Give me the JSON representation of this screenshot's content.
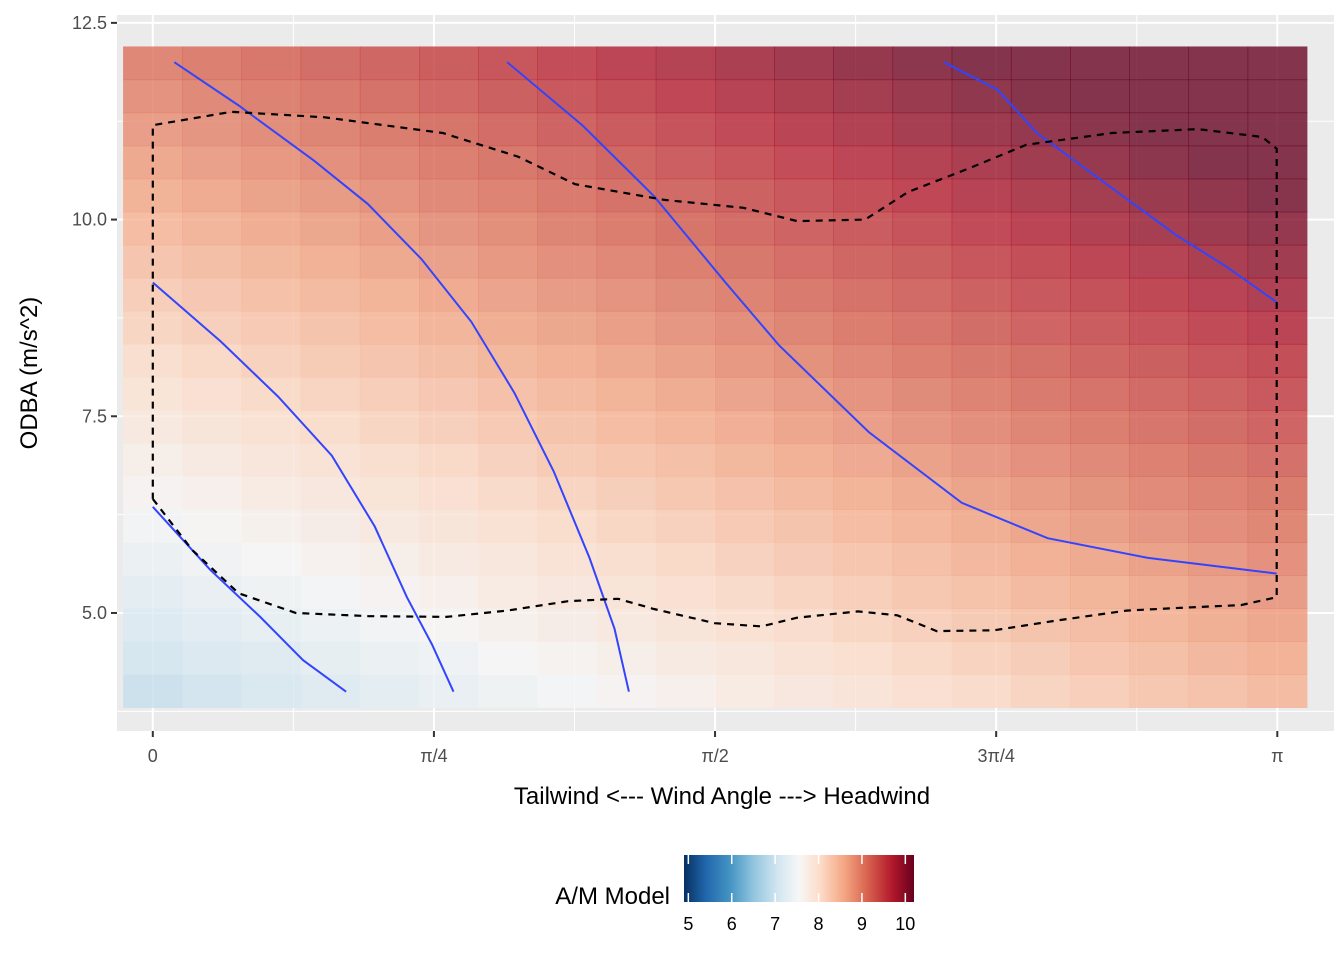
{
  "chart_data": {
    "type": "heatmap",
    "title": "",
    "xlabel": "Tailwind  <---  Wind Angle  --->  Headwind",
    "ylabel": "ODBA (m/s^2)",
    "xlim": [
      -0.1,
      3.3
    ],
    "ylim": [
      3.5,
      12.6
    ],
    "x_ticks": [
      {
        "value": 0,
        "label": "0"
      },
      {
        "value": 0.7854,
        "label": "π/4"
      },
      {
        "value": 1.5708,
        "label": "π/2"
      },
      {
        "value": 2.3562,
        "label": "3π/4"
      },
      {
        "value": 3.1416,
        "label": "π"
      }
    ],
    "y_ticks": [
      {
        "value": 5.0,
        "label": "5.0"
      },
      {
        "value": 7.5,
        "label": "7.5"
      },
      {
        "value": 10.0,
        "label": "10.0"
      },
      {
        "value": 12.5,
        "label": "12.5"
      }
    ],
    "grid": true,
    "fill": {
      "x_range": [
        -0.083,
        3.224
      ],
      "y_range": [
        3.8,
        12.2
      ],
      "nx": 20,
      "ny": 20,
      "approx_model": {
        "intercept": 7.2,
        "slope_angle": 0.5,
        "slope_odba": 0.265,
        "odba_ref": 5.0,
        "base_value": 5.9
      }
    },
    "legend": {
      "title": "A/M Model",
      "position": "bottom",
      "min": 4.9,
      "max": 10.2,
      "ticks": [
        5,
        6,
        7,
        8,
        9,
        10
      ],
      "colors": [
        "#053061",
        "#2166ac",
        "#4393c3",
        "#92c5de",
        "#d1e5f0",
        "#f7f7f7",
        "#fddbc7",
        "#f4a582",
        "#d6604d",
        "#b2182b",
        "#67001f"
      ],
      "color_stops": [
        4.9,
        5.4,
        5.95,
        6.5,
        7.05,
        7.55,
        8.05,
        8.6,
        9.15,
        9.7,
        10.2
      ]
    },
    "contours": [
      {
        "line": "solid",
        "color": "#3344ff",
        "points": [
          [
            0.06,
            12.0
          ],
          [
            0.24,
            11.45
          ],
          [
            0.45,
            10.75
          ],
          [
            0.6,
            10.2
          ],
          [
            0.75,
            9.5
          ],
          [
            0.89,
            8.7
          ],
          [
            1.01,
            7.8
          ],
          [
            1.12,
            6.8
          ],
          [
            1.22,
            5.7
          ],
          [
            1.29,
            4.8
          ],
          [
            1.33,
            4.0
          ]
        ]
      },
      {
        "line": "solid",
        "color": "#3344ff",
        "points": [
          [
            0.0,
            9.2
          ],
          [
            0.19,
            8.45
          ],
          [
            0.35,
            7.75
          ],
          [
            0.5,
            7.0
          ],
          [
            0.62,
            6.1
          ],
          [
            0.71,
            5.2
          ],
          [
            0.78,
            4.6
          ],
          [
            0.84,
            4.0
          ]
        ]
      },
      {
        "line": "solid",
        "color": "#3344ff",
        "points": [
          [
            0.0,
            6.35
          ],
          [
            0.07,
            6.0
          ],
          [
            0.16,
            5.55
          ],
          [
            0.3,
            4.95
          ],
          [
            0.42,
            4.4
          ],
          [
            0.54,
            4.0
          ]
        ]
      },
      {
        "line": "solid",
        "color": "#3344ff",
        "points": [
          [
            0.99,
            12.0
          ],
          [
            1.2,
            11.2
          ],
          [
            1.4,
            10.3
          ],
          [
            1.6,
            9.2
          ],
          [
            1.75,
            8.4
          ],
          [
            2.0,
            7.3
          ],
          [
            2.26,
            6.4
          ],
          [
            2.5,
            5.95
          ],
          [
            2.78,
            5.7
          ],
          [
            3.14,
            5.5
          ]
        ]
      },
      {
        "line": "solid",
        "color": "#3344ff",
        "points": [
          [
            2.21,
            12.0
          ],
          [
            2.36,
            11.65
          ],
          [
            2.47,
            11.1
          ],
          [
            2.71,
            10.3
          ],
          [
            2.86,
            9.8
          ],
          [
            3.0,
            9.4
          ],
          [
            3.14,
            8.95
          ]
        ]
      },
      {
        "line": "dashed",
        "color": "#000000",
        "points": [
          [
            0.0,
            6.45
          ],
          [
            0.11,
            5.8
          ],
          [
            0.24,
            5.25
          ],
          [
            0.4,
            5.0
          ],
          [
            0.6,
            4.96
          ],
          [
            0.82,
            4.95
          ],
          [
            0.99,
            5.03
          ],
          [
            1.16,
            5.15
          ],
          [
            1.3,
            5.18
          ],
          [
            1.4,
            5.05
          ],
          [
            1.57,
            4.87
          ],
          [
            1.7,
            4.83
          ],
          [
            1.8,
            4.94
          ],
          [
            1.97,
            5.02
          ],
          [
            2.08,
            4.97
          ],
          [
            2.19,
            4.77
          ],
          [
            2.35,
            4.78
          ],
          [
            2.52,
            4.9
          ],
          [
            2.72,
            5.03
          ],
          [
            2.89,
            5.07
          ],
          [
            3.04,
            5.1
          ],
          [
            3.14,
            5.2
          ],
          [
            3.14,
            8.5
          ],
          [
            3.14,
            10.9
          ],
          [
            3.1,
            11.05
          ],
          [
            2.92,
            11.15
          ],
          [
            2.68,
            11.1
          ],
          [
            2.44,
            10.95
          ],
          [
            2.28,
            10.65
          ],
          [
            2.11,
            10.35
          ],
          [
            1.99,
            10.0
          ],
          [
            1.8,
            9.98
          ],
          [
            1.65,
            10.15
          ],
          [
            1.43,
            10.25
          ],
          [
            1.18,
            10.45
          ],
          [
            1.02,
            10.8
          ],
          [
            0.81,
            11.1
          ],
          [
            0.48,
            11.3
          ],
          [
            0.22,
            11.37
          ],
          [
            0.0,
            11.2
          ],
          [
            0.0,
            9.0
          ],
          [
            0.0,
            6.45
          ]
        ]
      }
    ]
  }
}
